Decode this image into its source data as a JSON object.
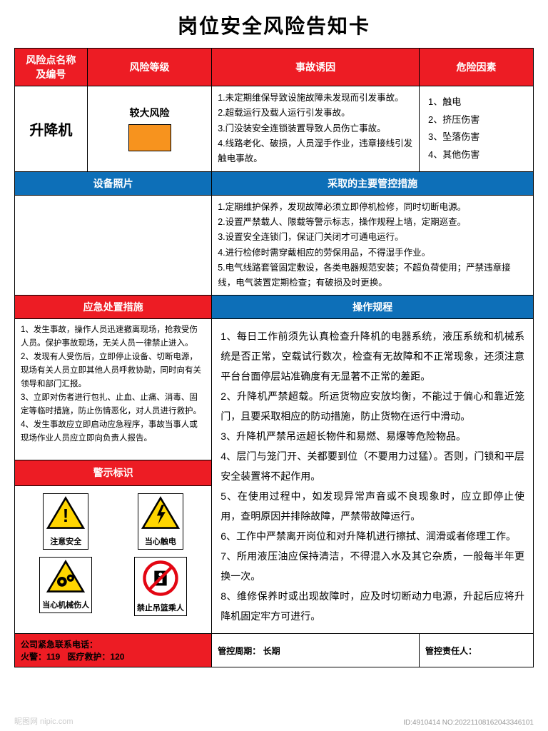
{
  "title": "岗位安全风险告知卡",
  "headers": {
    "risk_name": "风险点名称\n及编号",
    "risk_level": "风险等级",
    "accident_cause": "事故诱因",
    "danger_factor": "危险因素",
    "equipment_photo": "设备照片",
    "control_measures": "采取的主要管控措施",
    "emergency_measures": "应急处置措施",
    "operation_procedures": "操作规程",
    "warning_signs": "警示标识"
  },
  "risk_point": {
    "name": "升降机",
    "level_text": "较大风险",
    "level_color": "#f7931e"
  },
  "accident_causes": [
    "1.未定期维保导致设施故障未发现而引发事故。",
    "2.超载运行及载人运行引发事故。",
    "3.门没装安全连锁装置导致人员伤亡事故。",
    "4.线路老化、破损，人员湿手作业，违章接线引发触电事故。"
  ],
  "danger_factors": [
    "1、触电",
    "2、挤压伤害",
    "3、坠落伤害",
    "4、其他伤害"
  ],
  "control_measures": [
    "1.定期维护保养，发现故障必须立即停机检修，同时切断电源。",
    "2.设置严禁载人、限载等警示标志，操作规程上墙，定期巡查。",
    "3.设置安全连锁门，保证门关闭才可通电运行。",
    "4.进行检修时需穿戴相应的劳保用品，不得湿手作业。",
    "5.电气线路套管固定敷设，各类电器规范安装；不超负荷使用；严禁违章接线，电气装置定期检查；有破损及时更换。"
  ],
  "emergency_measures": [
    "1、发生事故，操作人员迅速撤离现场，抢救受伤人员。保护事故现场，无关人员一律禁止进入。",
    "2、发现有人受伤后，立即停止设备、切断电源，现场有关人员立即其他人员呼救协助，同时向有关领导和部门汇报。",
    "3、立即对伤者进行包扎、止血、止痛、消毒、固定等临时措施，防止伤情恶化，对人员进行救护。",
    "4、发生事故应立即启动应急程序，事故当事人或现场作业人员应立即向负责人报告。"
  ],
  "operation_procedures": [
    "1、每日工作前须先认真检查升降机的电器系统，液压系统和机械系统是否正常，空载试行数次，检查有无故障和不正常现象，还须注意平台台面停层站准确度有无显著不正常的差距。",
    "2、升降机严禁超载。所运货物应安放均衡，不能过于偏心和靠近笼门，且要采取相应的防动措施，防止货物在运行中滑动。",
    "3、升降机严禁吊运超长物件和易燃、易爆等危险物品。",
    "4、层门与笼门开、关都要到位（不要用力过猛）。否则，门锁和平层安全装置将不起作用。",
    "5、在使用过程中，如发现异常声音或不良现象时，应立即停止使用，查明原因并排除故障，严禁带故障运行。",
    "6、工作中严禁离开岗位和对升降机进行擦拭、润滑或者修理工作。",
    "7、所用液压油应保持清洁，不得混入水及其它杂质，一般每半年更换一次。",
    "8、维修保养时或出现故障时，应及时切断动力电源，升起后应将升降机固定牢方可进行。"
  ],
  "warning_signs": {
    "sign1": "注意安全",
    "sign2": "当心触电",
    "sign3": "当心机械伤人",
    "sign4": "禁止吊篮乘人"
  },
  "footer": {
    "emergency_contact": "公司紧急联系电话：",
    "fire": "火警：119",
    "medical": "医疗救护：120",
    "control_period_label": "管控周期：",
    "control_period_value": "长期",
    "responsible_label": "管控责任人："
  },
  "colors": {
    "red": "#ed1c24",
    "blue": "#0d6fb8",
    "orange": "#f7931e",
    "yellow": "#ffd500",
    "prohib_red": "#e30613"
  },
  "watermark": {
    "left": "昵图网 nipic.com",
    "right": "ID:4910414 NO:20221108162043346101"
  }
}
